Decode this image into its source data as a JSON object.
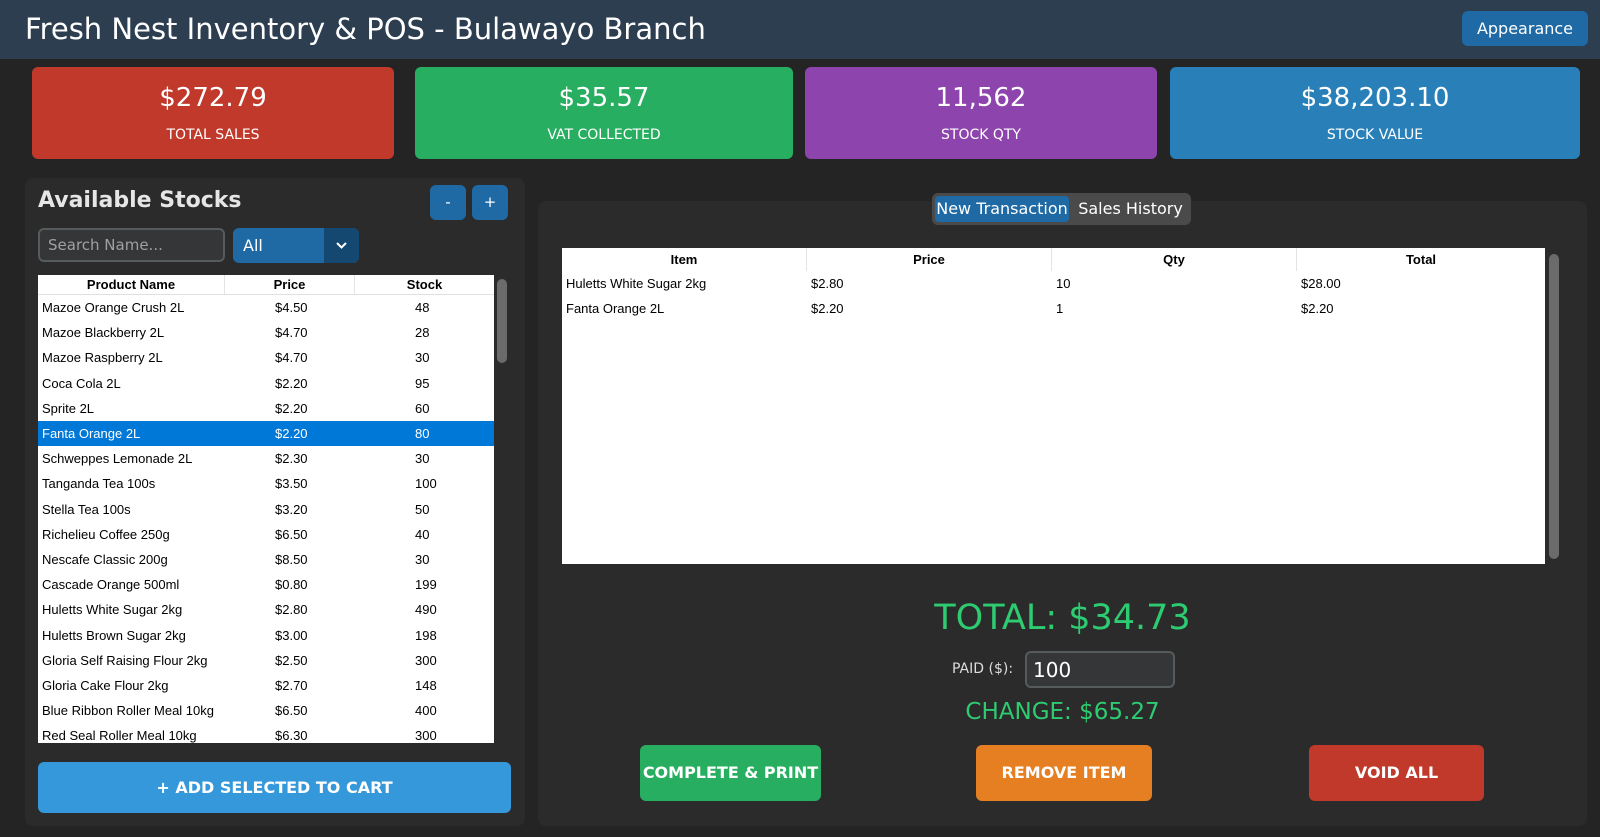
{
  "header": {
    "title": "Fresh Nest Inventory & POS - Bulawayo Branch",
    "appearance_label": "Appearance"
  },
  "cards": [
    {
      "value": "$272.79",
      "label": "TOTAL SALES",
      "color": "#c0392b"
    },
    {
      "value": "$35.57",
      "label": "VAT COLLECTED",
      "color": "#27ae60"
    },
    {
      "value": "11,562",
      "label": "STOCK QTY",
      "color": "#8e44ad"
    },
    {
      "value": "$38,203.10",
      "label": "STOCK VALUE",
      "color": "#2980b9"
    }
  ],
  "stocks": {
    "title": "Available Stocks",
    "minus_label": "-",
    "plus_label": "+",
    "search_placeholder": "Search Name...",
    "filter_value": "All",
    "columns": [
      "Product Name",
      "Price",
      "Stock"
    ],
    "rows": [
      [
        "Mazoe Orange Crush 2L",
        "$4.50",
        "48"
      ],
      [
        "Mazoe Blackberry 2L",
        "$4.70",
        "28"
      ],
      [
        "Mazoe Raspberry 2L",
        "$4.70",
        "30"
      ],
      [
        "Coca Cola 2L",
        "$2.20",
        "95"
      ],
      [
        "Sprite 2L",
        "$2.20",
        "60"
      ],
      [
        "Fanta Orange 2L",
        "$2.20",
        "80"
      ],
      [
        "Schweppes Lemonade 2L",
        "$2.30",
        "30"
      ],
      [
        "Tanganda Tea 100s",
        "$3.50",
        "100"
      ],
      [
        "Stella Tea 100s",
        "$3.20",
        "50"
      ],
      [
        "Richelieu Coffee 250g",
        "$6.50",
        "40"
      ],
      [
        "Nescafe Classic 200g",
        "$8.50",
        "30"
      ],
      [
        "Cascade Orange 500ml",
        "$0.80",
        "199"
      ],
      [
        "Huletts White Sugar 2kg",
        "$2.80",
        "490"
      ],
      [
        "Huletts Brown Sugar 2kg",
        "$3.00",
        "198"
      ],
      [
        "Gloria Self Raising Flour 2kg",
        "$2.50",
        "300"
      ],
      [
        "Gloria Cake Flour 2kg",
        "$2.70",
        "148"
      ],
      [
        "Blue Ribbon Roller Meal 10kg",
        "$6.50",
        "400"
      ],
      [
        "Red Seal Roller Meal 10kg",
        "$6.30",
        "300"
      ]
    ],
    "selected_product": "Fanta Orange 2L",
    "add_button_label": "+ ADD SELECTED TO CART"
  },
  "tabs": [
    "New Transaction",
    "Sales History"
  ],
  "active_tab": "New Transaction",
  "cart": {
    "columns": [
      "Item",
      "Price",
      "Qty",
      "Total"
    ],
    "rows": [
      [
        "Huletts White Sugar 2kg",
        "$2.80",
        "10",
        "$28.00"
      ],
      [
        "Fanta Orange 2L",
        "$2.20",
        "1",
        "$2.20"
      ]
    ]
  },
  "checkout": {
    "total_text": "TOTAL: $34.73",
    "paid_label": "PAID ($):",
    "paid_value": "100",
    "change_text": "CHANGE: $65.27",
    "complete_label": "COMPLETE & PRINT",
    "remove_label": "REMOVE ITEM",
    "void_label": "VOID ALL",
    "complete_color": "#27ae60",
    "remove_color": "#e67e22",
    "void_color": "#c0392b"
  },
  "icons": {
    "dropdown": "chevron-down-icon"
  }
}
